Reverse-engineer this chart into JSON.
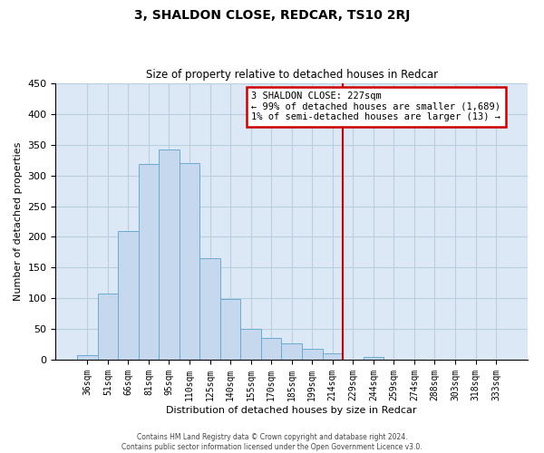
{
  "title": "3, SHALDON CLOSE, REDCAR, TS10 2RJ",
  "subtitle": "Size of property relative to detached houses in Redcar",
  "xlabel": "Distribution of detached houses by size in Redcar",
  "ylabel": "Number of detached properties",
  "bar_labels": [
    "36sqm",
    "51sqm",
    "66sqm",
    "81sqm",
    "95sqm",
    "110sqm",
    "125sqm",
    "140sqm",
    "155sqm",
    "170sqm",
    "185sqm",
    "199sqm",
    "214sqm",
    "229sqm",
    "244sqm",
    "259sqm",
    "274sqm",
    "288sqm",
    "303sqm",
    "318sqm",
    "333sqm"
  ],
  "bar_heights": [
    7,
    107,
    210,
    318,
    342,
    320,
    165,
    99,
    50,
    35,
    27,
    17,
    10,
    0,
    5,
    0,
    0,
    0,
    0,
    0,
    0
  ],
  "bar_color": "#c5d8ee",
  "bar_edge_color": "#6aaad4",
  "vline_x": 13.0,
  "vline_color": "#cc0000",
  "annotation_title": "3 SHALDON CLOSE: 227sqm",
  "annotation_line1": "← 99% of detached houses are smaller (1,689)",
  "annotation_line2": "1% of semi-detached houses are larger (13) →",
  "ylim": [
    0,
    450
  ],
  "yticks": [
    0,
    50,
    100,
    150,
    200,
    250,
    300,
    350,
    400,
    450
  ],
  "footer1": "Contains HM Land Registry data © Crown copyright and database right 2024.",
  "footer2": "Contains public sector information licensed under the Open Government Licence v3.0.",
  "plot_bg_color": "#dce8f5",
  "fig_bg_color": "#ffffff",
  "grid_color": "#b8cfe0",
  "ann_box_facecolor": "#ffffff",
  "ann_box_edgecolor": "#cc0000"
}
